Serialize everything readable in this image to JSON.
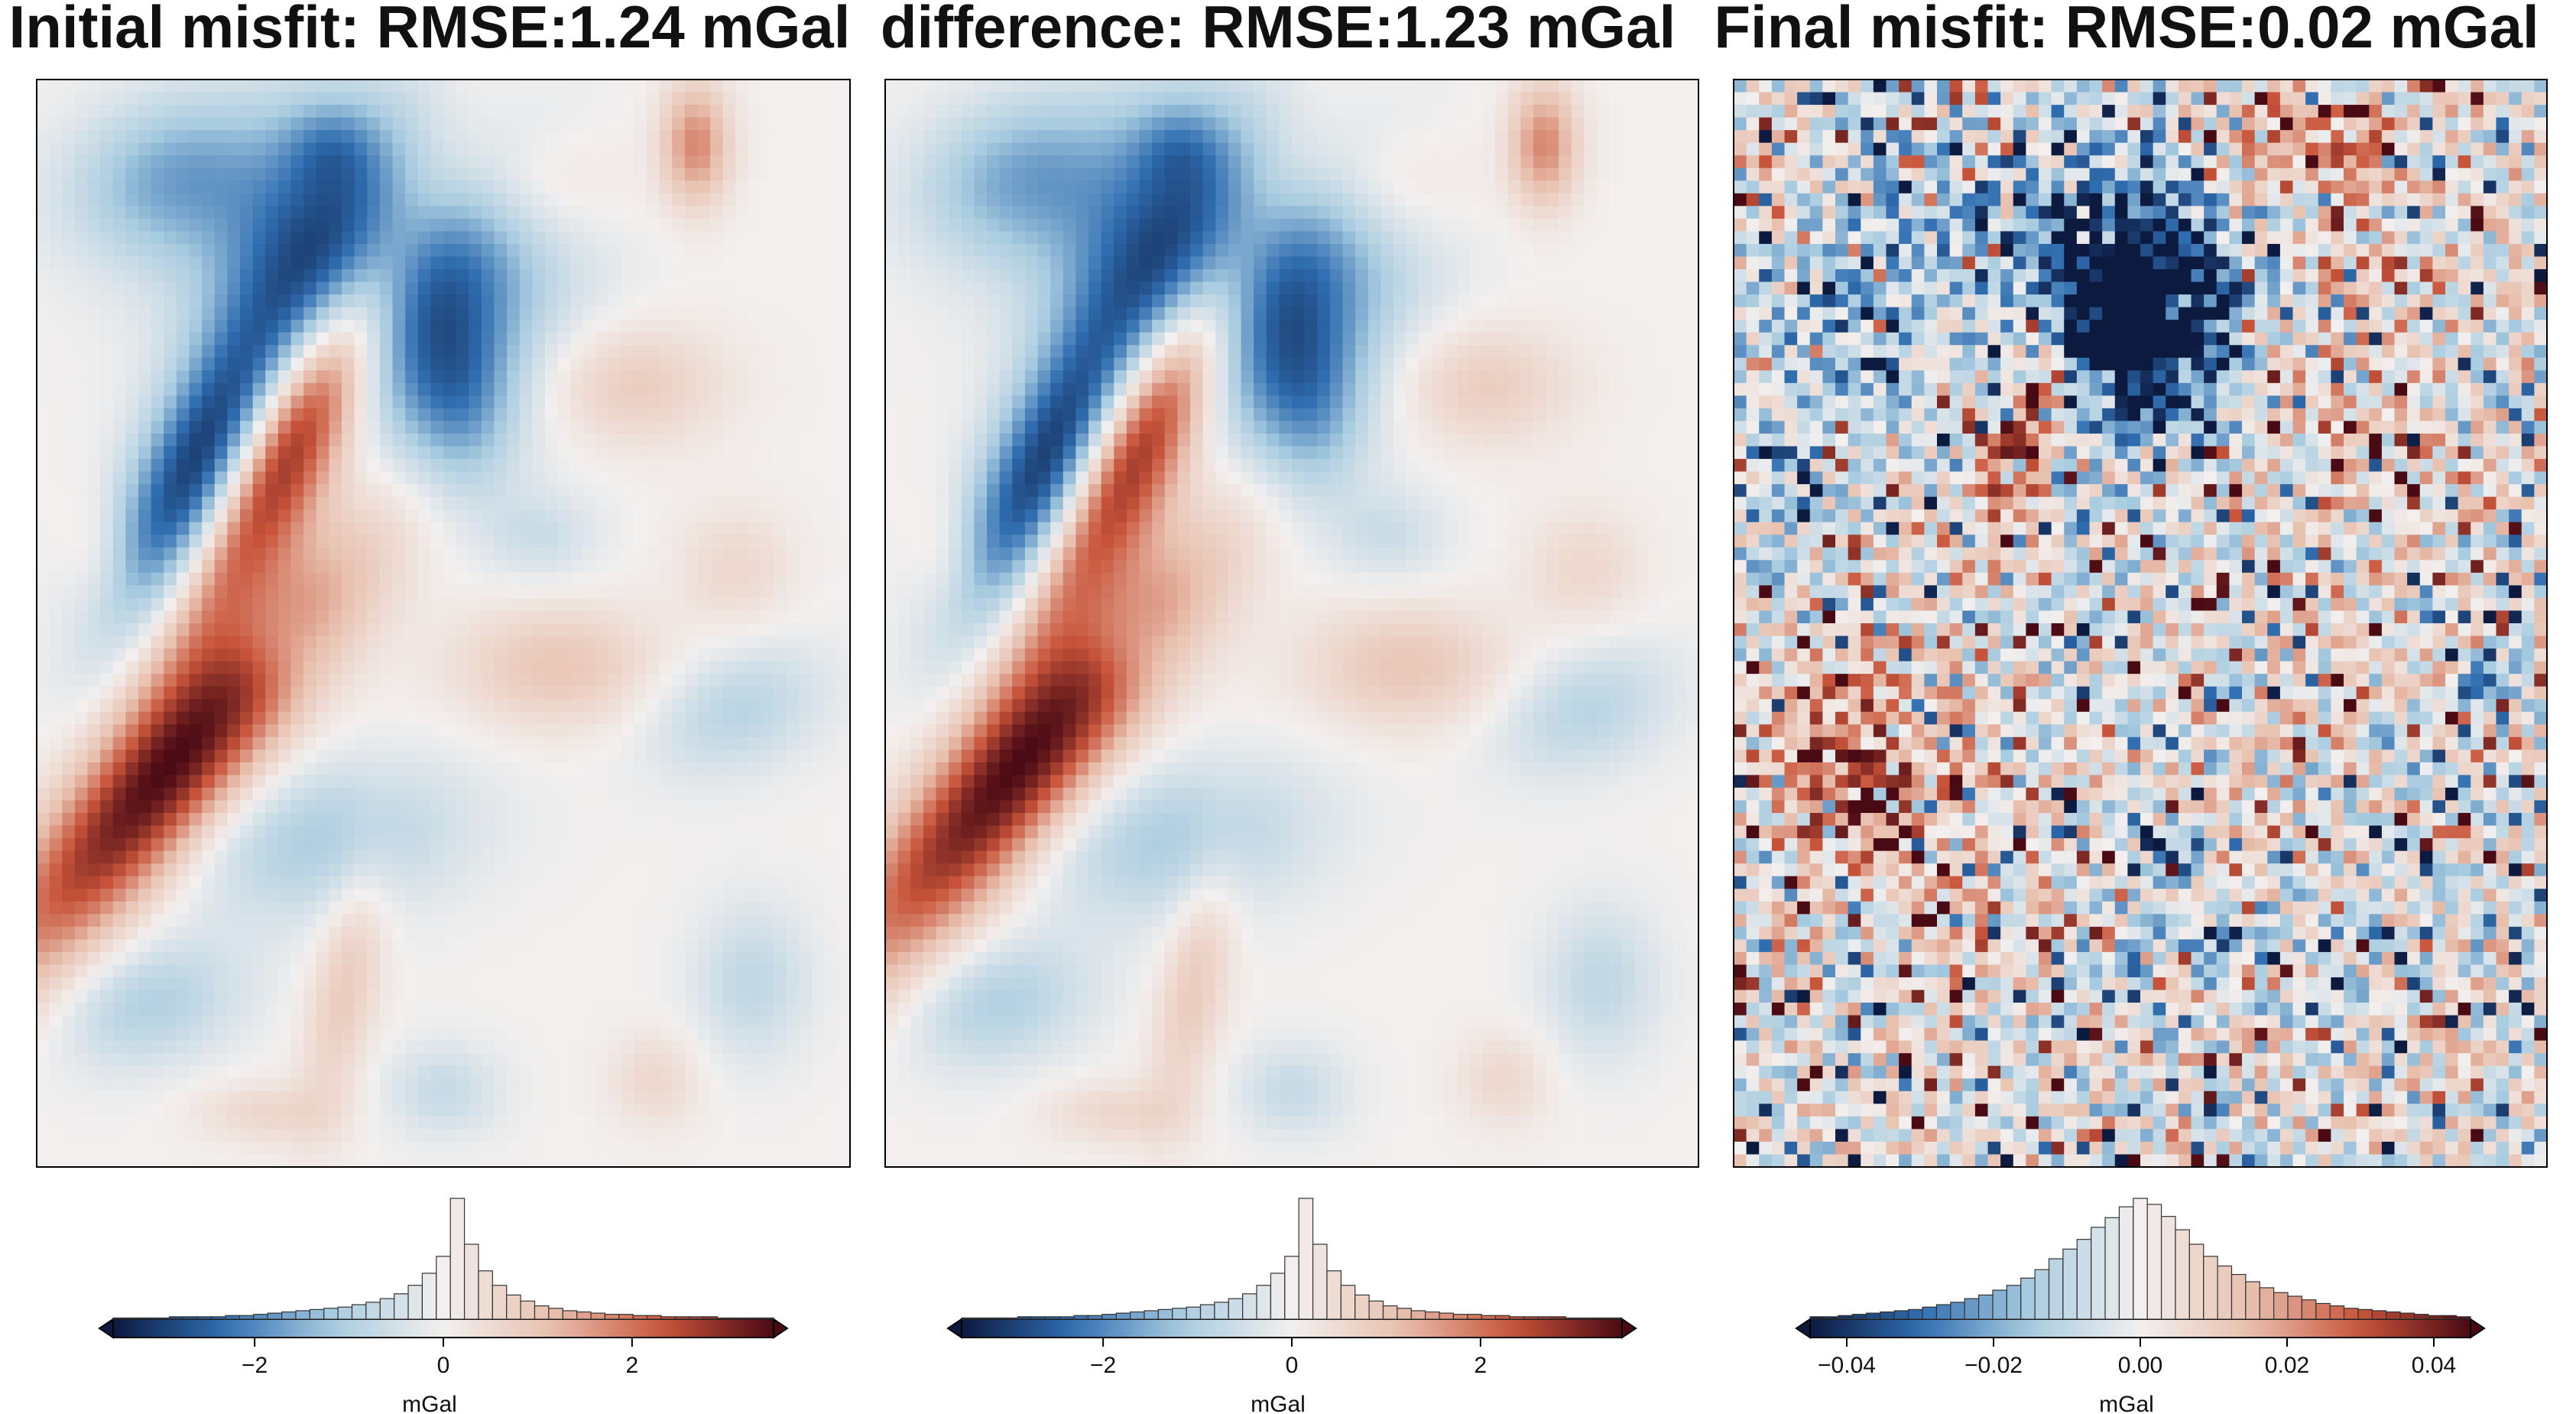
{
  "colors": {
    "negative_dark": "#0d1a40",
    "negative_mid": "#2f6db0",
    "negative_light": "#a9cce0",
    "neutral": "#f2efee",
    "positive_light": "#e8c0ae",
    "positive_mid": "#c8543a",
    "positive_dark": "#4a0a14",
    "frame": "#000000",
    "hist_edge": "#333333"
  },
  "chart_data": [
    {
      "type": "heatmap",
      "title": "Initial misfit: RMSE:1.24 mGal",
      "cmap": "balance (diverging blue-white-red)",
      "colorbar": {
        "label": "mGal",
        "range": [
          -3.5,
          3.5
        ],
        "extend": "both",
        "ticks": [
          -2,
          0,
          2
        ],
        "tick_labels": [
          "−2",
          "0",
          "2"
        ],
        "histogram": [
          0.01,
          0.01,
          0.01,
          0.01,
          0.02,
          0.02,
          0.02,
          0.02,
          0.03,
          0.03,
          0.04,
          0.05,
          0.06,
          0.07,
          0.08,
          0.09,
          0.1,
          0.12,
          0.14,
          0.17,
          0.21,
          0.28,
          0.38,
          0.52,
          1.0,
          0.62,
          0.4,
          0.28,
          0.2,
          0.15,
          0.11,
          0.09,
          0.07,
          0.06,
          0.05,
          0.04,
          0.04,
          0.03,
          0.03,
          0.02,
          0.02,
          0.02,
          0.02,
          0.01,
          0.01,
          0.01,
          0.01
        ]
      },
      "features": [
        {
          "v": -3.5,
          "x": 0.42,
          "y": 0.17,
          "sx": 0.13,
          "sy": 0.09,
          "rot": 0
        },
        {
          "v": -3.3,
          "x": 0.2,
          "y": 0.36,
          "sx": 0.05,
          "sy": 0.11,
          "rot": 25
        },
        {
          "v": 3.6,
          "x": 0.32,
          "y": 0.32,
          "sx": 0.045,
          "sy": 0.16,
          "rot": 28
        },
        {
          "v": 3.4,
          "x": 0.16,
          "y": 0.64,
          "sx": 0.055,
          "sy": 0.17,
          "rot": 40
        },
        {
          "v": 1.8,
          "x": 0.81,
          "y": 0.06,
          "sx": 0.03,
          "sy": 0.04,
          "rot": 0
        },
        {
          "v": -1.4,
          "x": 0.16,
          "y": 0.09,
          "sx": 0.09,
          "sy": 0.05,
          "rot": -20
        },
        {
          "v": -1.5,
          "x": 0.52,
          "y": 0.3,
          "sx": 0.05,
          "sy": 0.06,
          "rot": 0
        },
        {
          "v": -1.1,
          "x": 0.36,
          "y": 0.7,
          "sx": 0.12,
          "sy": 0.05,
          "rot": -10
        },
        {
          "v": -1.0,
          "x": 0.14,
          "y": 0.85,
          "sx": 0.08,
          "sy": 0.04,
          "rot": -15
        },
        {
          "v": -0.9,
          "x": 0.86,
          "y": 0.58,
          "sx": 0.08,
          "sy": 0.04,
          "rot": -20
        },
        {
          "v": -0.8,
          "x": 0.88,
          "y": 0.83,
          "sx": 0.05,
          "sy": 0.05,
          "rot": 0
        },
        {
          "v": -0.7,
          "x": 0.5,
          "y": 0.93,
          "sx": 0.05,
          "sy": 0.03,
          "rot": 0
        },
        {
          "v": -0.8,
          "x": 0.36,
          "y": 0.06,
          "sx": 0.04,
          "sy": 0.03,
          "rot": 0
        },
        {
          "v": 1.0,
          "x": 0.64,
          "y": 0.54,
          "sx": 0.09,
          "sy": 0.04,
          "rot": 0
        },
        {
          "v": 0.9,
          "x": 0.38,
          "y": 0.83,
          "sx": 0.03,
          "sy": 0.09,
          "rot": 10
        },
        {
          "v": 0.9,
          "x": 0.73,
          "y": 0.28,
          "sx": 0.08,
          "sy": 0.04,
          "rot": 0
        },
        {
          "v": 0.7,
          "x": 0.6,
          "y": 0.1,
          "sx": 0.08,
          "sy": 0.04,
          "rot": 0
        },
        {
          "v": 0.6,
          "x": 0.86,
          "y": 0.45,
          "sx": 0.05,
          "sy": 0.04,
          "rot": 0
        },
        {
          "v": 0.6,
          "x": 0.28,
          "y": 0.95,
          "sx": 0.06,
          "sy": 0.02,
          "rot": 0
        },
        {
          "v": 0.6,
          "x": 0.76,
          "y": 0.92,
          "sx": 0.04,
          "sy": 0.03,
          "rot": 0
        },
        {
          "v": 0.5,
          "x": 0.08,
          "y": 0.44,
          "sx": 0.03,
          "sy": 0.04,
          "rot": 0
        },
        {
          "v": -0.6,
          "x": 0.3,
          "y": 0.52,
          "sx": 0.04,
          "sy": 0.03,
          "rot": 0
        },
        {
          "v": -0.6,
          "x": 0.62,
          "y": 0.42,
          "sx": 0.05,
          "sy": 0.03,
          "rot": 0
        }
      ]
    },
    {
      "type": "heatmap",
      "title": "difference: RMSE:1.23 mGal",
      "cmap": "balance (diverging blue-white-red)",
      "colorbar": {
        "label": "mGal",
        "range": [
          -3.5,
          3.5
        ],
        "extend": "both",
        "ticks": [
          -2,
          0,
          2
        ],
        "tick_labels": [
          "−2",
          "0",
          "2"
        ],
        "histogram": [
          0.01,
          0.01,
          0.01,
          0.01,
          0.02,
          0.02,
          0.02,
          0.02,
          0.03,
          0.03,
          0.04,
          0.05,
          0.06,
          0.07,
          0.08,
          0.09,
          0.1,
          0.12,
          0.14,
          0.17,
          0.21,
          0.28,
          0.38,
          0.52,
          1.0,
          0.62,
          0.4,
          0.28,
          0.2,
          0.15,
          0.11,
          0.09,
          0.07,
          0.06,
          0.05,
          0.04,
          0.04,
          0.03,
          0.03,
          0.02,
          0.02,
          0.02,
          0.02,
          0.01,
          0.01,
          0.01,
          0.01
        ]
      },
      "features": [
        {
          "v": -3.5,
          "x": 0.42,
          "y": 0.17,
          "sx": 0.13,
          "sy": 0.09,
          "rot": 0
        },
        {
          "v": -3.3,
          "x": 0.2,
          "y": 0.36,
          "sx": 0.05,
          "sy": 0.11,
          "rot": 25
        },
        {
          "v": 3.6,
          "x": 0.32,
          "y": 0.32,
          "sx": 0.045,
          "sy": 0.16,
          "rot": 28
        },
        {
          "v": 3.4,
          "x": 0.16,
          "y": 0.64,
          "sx": 0.055,
          "sy": 0.17,
          "rot": 40
        },
        {
          "v": 1.8,
          "x": 0.81,
          "y": 0.06,
          "sx": 0.03,
          "sy": 0.04,
          "rot": 0
        },
        {
          "v": -1.4,
          "x": 0.16,
          "y": 0.09,
          "sx": 0.09,
          "sy": 0.05,
          "rot": -20
        },
        {
          "v": -1.5,
          "x": 0.52,
          "y": 0.3,
          "sx": 0.05,
          "sy": 0.06,
          "rot": 0
        },
        {
          "v": -1.1,
          "x": 0.36,
          "y": 0.7,
          "sx": 0.12,
          "sy": 0.05,
          "rot": -10
        },
        {
          "v": -1.0,
          "x": 0.14,
          "y": 0.85,
          "sx": 0.08,
          "sy": 0.04,
          "rot": -15
        },
        {
          "v": -0.9,
          "x": 0.86,
          "y": 0.58,
          "sx": 0.08,
          "sy": 0.04,
          "rot": -20
        },
        {
          "v": -0.8,
          "x": 0.88,
          "y": 0.83,
          "sx": 0.05,
          "sy": 0.05,
          "rot": 0
        },
        {
          "v": -0.7,
          "x": 0.5,
          "y": 0.93,
          "sx": 0.05,
          "sy": 0.03,
          "rot": 0
        },
        {
          "v": -0.8,
          "x": 0.36,
          "y": 0.06,
          "sx": 0.04,
          "sy": 0.03,
          "rot": 0
        },
        {
          "v": 1.0,
          "x": 0.64,
          "y": 0.54,
          "sx": 0.09,
          "sy": 0.04,
          "rot": 0
        },
        {
          "v": 0.9,
          "x": 0.38,
          "y": 0.83,
          "sx": 0.03,
          "sy": 0.09,
          "rot": 10
        },
        {
          "v": 0.9,
          "x": 0.73,
          "y": 0.28,
          "sx": 0.08,
          "sy": 0.04,
          "rot": 0
        },
        {
          "v": 0.7,
          "x": 0.6,
          "y": 0.1,
          "sx": 0.08,
          "sy": 0.04,
          "rot": 0
        },
        {
          "v": 0.6,
          "x": 0.86,
          "y": 0.45,
          "sx": 0.05,
          "sy": 0.04,
          "rot": 0
        },
        {
          "v": 0.6,
          "x": 0.28,
          "y": 0.95,
          "sx": 0.06,
          "sy": 0.02,
          "rot": 0
        },
        {
          "v": 0.6,
          "x": 0.76,
          "y": 0.92,
          "sx": 0.04,
          "sy": 0.03,
          "rot": 0
        },
        {
          "v": 0.5,
          "x": 0.08,
          "y": 0.44,
          "sx": 0.03,
          "sy": 0.04,
          "rot": 0
        },
        {
          "v": -0.6,
          "x": 0.3,
          "y": 0.52,
          "sx": 0.04,
          "sy": 0.03,
          "rot": 0
        },
        {
          "v": -0.6,
          "x": 0.62,
          "y": 0.42,
          "sx": 0.05,
          "sy": 0.03,
          "rot": 0
        }
      ]
    },
    {
      "type": "heatmap",
      "title": "Final misfit: RMSE:0.02 mGal",
      "cmap": "balance (diverging blue-white-red)",
      "noise": true,
      "colorbar": {
        "label": "mGal",
        "range": [
          -0.045,
          0.045
        ],
        "extend": "both",
        "ticks": [
          -0.04,
          -0.02,
          0.0,
          0.02,
          0.04
        ],
        "tick_labels": [
          "−0.04",
          "−0.02",
          "0.00",
          "0.02",
          "0.04"
        ],
        "histogram": [
          0.02,
          0.02,
          0.03,
          0.04,
          0.05,
          0.06,
          0.07,
          0.08,
          0.1,
          0.12,
          0.14,
          0.17,
          0.2,
          0.24,
          0.28,
          0.34,
          0.41,
          0.5,
          0.58,
          0.66,
          0.76,
          0.84,
          0.93,
          1.0,
          0.95,
          0.85,
          0.74,
          0.62,
          0.52,
          0.44,
          0.37,
          0.31,
          0.26,
          0.22,
          0.19,
          0.16,
          0.13,
          0.11,
          0.09,
          0.08,
          0.07,
          0.06,
          0.05,
          0.04,
          0.03,
          0.03,
          0.02
        ]
      },
      "features": [
        {
          "v": -0.055,
          "x": 0.5,
          "y": 0.22,
          "sx": 0.07,
          "sy": 0.06,
          "rot": 0
        },
        {
          "v": -0.03,
          "x": 0.48,
          "y": 0.18,
          "sx": 0.11,
          "sy": 0.1,
          "rot": 0
        },
        {
          "v": 0.04,
          "x": 0.36,
          "y": 0.32,
          "sx": 0.03,
          "sy": 0.07,
          "rot": 15
        },
        {
          "v": 0.03,
          "x": 0.16,
          "y": 0.64,
          "sx": 0.07,
          "sy": 0.07,
          "rot": 0
        },
        {
          "v": 0.018,
          "x": 0.7,
          "y": 0.05,
          "sx": 0.1,
          "sy": 0.04,
          "rot": 0
        },
        {
          "v": 0.01,
          "x": 0.72,
          "y": 0.25,
          "sx": 0.12,
          "sy": 0.1,
          "rot": 0
        },
        {
          "v": -0.016,
          "x": 0.15,
          "y": 0.22,
          "sx": 0.08,
          "sy": 0.15,
          "rot": 25
        },
        {
          "v": -0.01,
          "x": 0.55,
          "y": 0.78,
          "sx": 0.12,
          "sy": 0.06,
          "rot": 0
        },
        {
          "v": 0.008,
          "x": 0.35,
          "y": 0.72,
          "sx": 0.1,
          "sy": 0.06,
          "rot": 0
        },
        {
          "v": -0.03,
          "x": 0.93,
          "y": 0.55,
          "sx": 0.02,
          "sy": 0.02,
          "rot": 0
        }
      ]
    }
  ]
}
